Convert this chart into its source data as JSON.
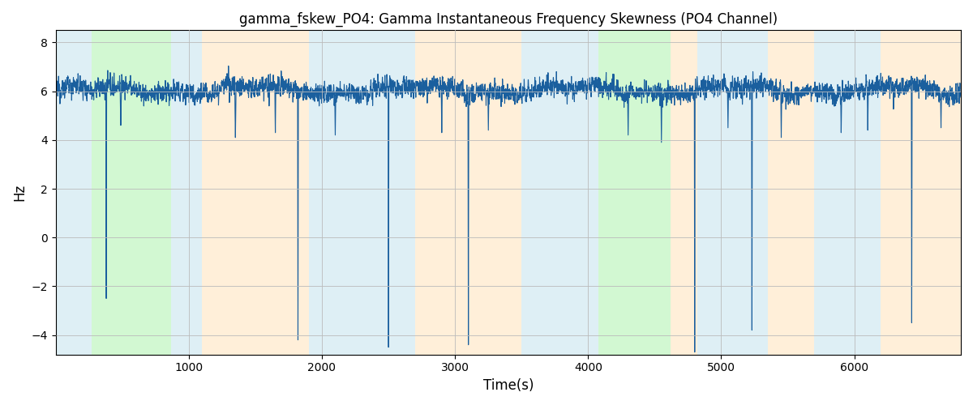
{
  "title": "gamma_fskew_PO4: Gamma Instantaneous Frequency Skewness (PO4 Channel)",
  "xlabel": "Time(s)",
  "ylabel": "Hz",
  "xlim": [
    0,
    6800
  ],
  "ylim": [
    -4.8,
    8.5
  ],
  "line_color": "#1a5f9e",
  "line_width": 0.8,
  "bg_color": "#ffffff",
  "grid_color": "#bbbbbb",
  "seed": 12345,
  "colored_bands": [
    {
      "xmin": 0,
      "xmax": 270,
      "color": "#add8e6",
      "alpha": 0.4
    },
    {
      "xmin": 270,
      "xmax": 870,
      "color": "#90ee90",
      "alpha": 0.4
    },
    {
      "xmin": 870,
      "xmax": 1100,
      "color": "#add8e6",
      "alpha": 0.4
    },
    {
      "xmin": 1100,
      "xmax": 1900,
      "color": "#ffd9a0",
      "alpha": 0.4
    },
    {
      "xmin": 1900,
      "xmax": 2700,
      "color": "#add8e6",
      "alpha": 0.4
    },
    {
      "xmin": 2700,
      "xmax": 3500,
      "color": "#ffd9a0",
      "alpha": 0.4
    },
    {
      "xmin": 3500,
      "xmax": 3950,
      "color": "#add8e6",
      "alpha": 0.4
    },
    {
      "xmin": 3950,
      "xmax": 4080,
      "color": "#add8e6",
      "alpha": 0.4
    },
    {
      "xmin": 4080,
      "xmax": 4620,
      "color": "#90ee90",
      "alpha": 0.4
    },
    {
      "xmin": 4620,
      "xmax": 4820,
      "color": "#ffd9a0",
      "alpha": 0.4
    },
    {
      "xmin": 4820,
      "xmax": 5350,
      "color": "#add8e6",
      "alpha": 0.4
    },
    {
      "xmin": 5350,
      "xmax": 5700,
      "color": "#ffd9a0",
      "alpha": 0.4
    },
    {
      "xmin": 5700,
      "xmax": 6200,
      "color": "#add8e6",
      "alpha": 0.4
    },
    {
      "xmin": 6200,
      "xmax": 6800,
      "color": "#ffd9a0",
      "alpha": 0.4
    }
  ],
  "num_points": 6800,
  "base_value": 6.05,
  "noise_std": 0.35,
  "figsize": [
    12.0,
    5.0
  ],
  "dpi": 100,
  "title_fontsize": 12
}
